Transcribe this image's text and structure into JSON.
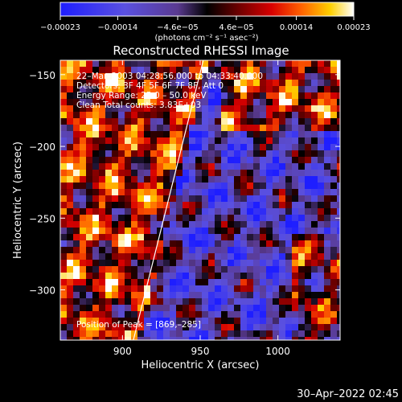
{
  "chart_data": {
    "type": "heatmap",
    "title": "Reconstructed RHESSI Image",
    "xlabel": "Heliocentric X (arcsec)",
    "ylabel": "Heliocentric Y (arcsec)",
    "xlim": [
      860,
      1040
    ],
    "ylim": [
      -335,
      -140
    ],
    "x_ticks": [
      "900",
      "950",
      "1000"
    ],
    "x_tick_values": [
      900,
      950,
      1000
    ],
    "y_ticks": [
      "−150",
      "−200",
      "−250",
      "−300"
    ],
    "y_tick_values": [
      -150,
      -200,
      -250,
      -300
    ],
    "colorbar": {
      "min": -0.00023,
      "max": 0.00023,
      "tick_labels": [
        "−0.00023",
        "−0.00014",
        "−4.6e−05",
        "4.6e−05",
        "0.00014",
        "0.00023"
      ],
      "tick_values": [
        -0.00023,
        -0.00014,
        -4.6e-05,
        4.6e-05,
        0.00014,
        0.00023
      ],
      "units_label": "(photons cm⁻² s⁻¹ asec⁻²)"
    },
    "info_lines": [
      "22–Mar–2003 04:28:56.000 to 04:33:40.000",
      "Detectors: 3F 4F 5F 6F 7F 8F, Att 0",
      "Energy Range: 25.0 – 50.0 keV",
      "Clean     Total counts: 3.83E+03"
    ],
    "peak_label": "Position of Peak = [869,–285]",
    "peak_position": [
      869,
      -285
    ],
    "limb_line": [
      [
        907,
        -335
      ],
      [
        952,
        -140
      ]
    ],
    "colors": {
      "background": "#000000",
      "low": "#1c1cff",
      "mid": "#4a3aa0",
      "zero": "#000000",
      "high": "#ffffff"
    }
  },
  "timestamp": "30–Apr–2022 02:45"
}
